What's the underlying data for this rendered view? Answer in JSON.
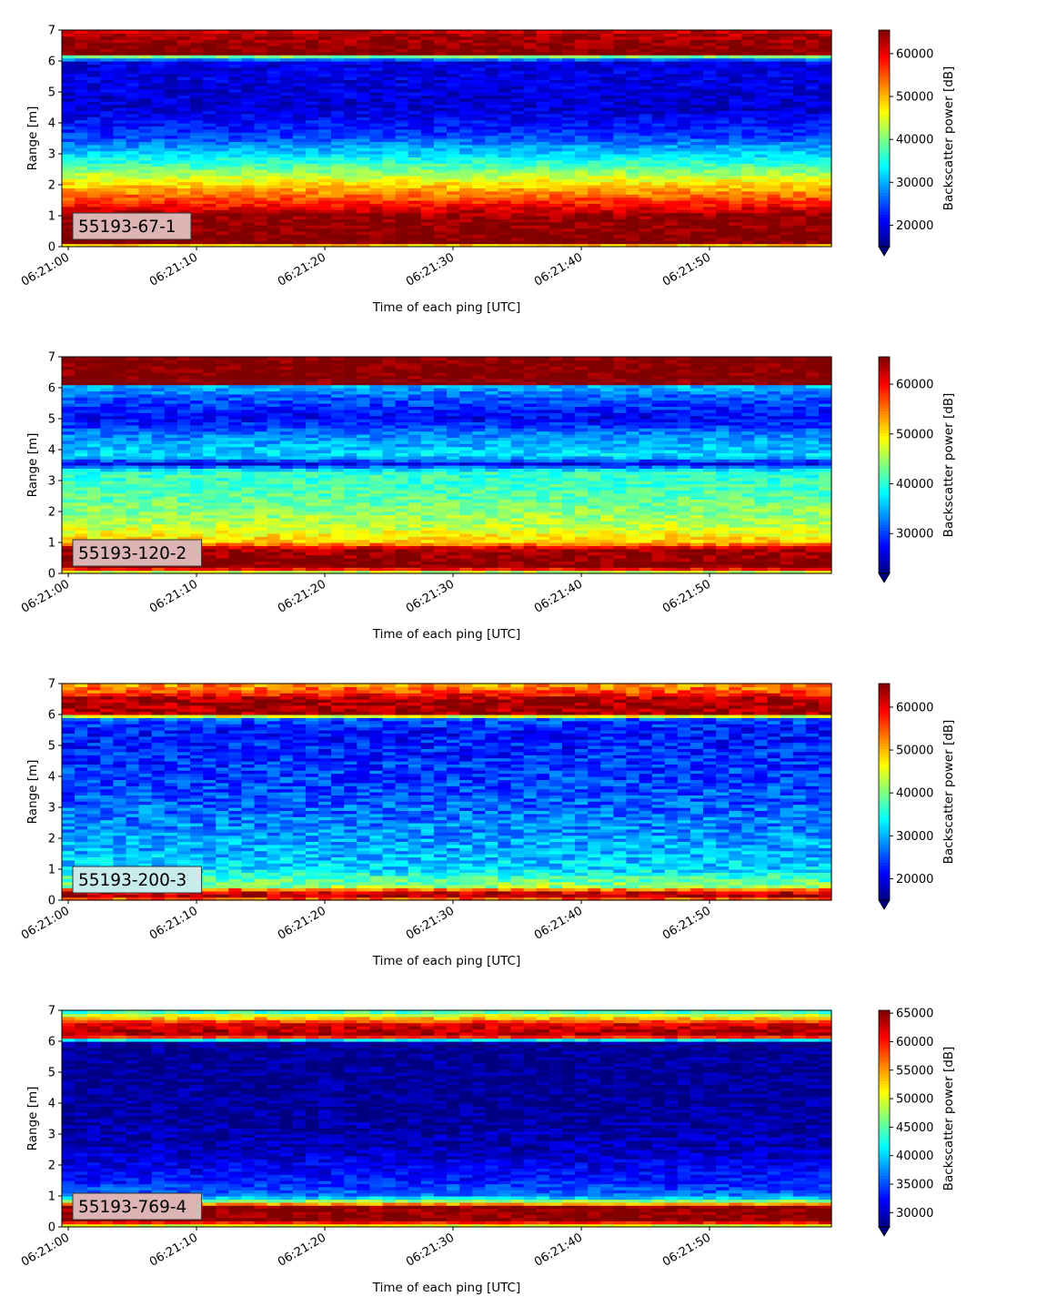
{
  "chart_data": [
    {
      "type": "heatmap",
      "label": "55193-67-1",
      "label_bg": "#dcb4b4",
      "xlabel": "Time of each ping [UTC]",
      "ylabel": "Range [m]",
      "xticks": [
        "06:21:00",
        "06:21:10",
        "06:21:20",
        "06:21:30",
        "06:21:40",
        "06:21:50"
      ],
      "xlim_seconds": [
        -0.5,
        59.5
      ],
      "yticks": [
        0,
        1,
        2,
        3,
        4,
        5,
        6,
        7
      ],
      "ylim": [
        0,
        7
      ],
      "colorbar_label": "Backscatter power [dB]",
      "colorbar_ticks": [
        20000,
        30000,
        40000,
        50000,
        60000
      ],
      "clim": [
        15000,
        65500
      ],
      "colormap": "jet",
      "colorbar_extend": "min",
      "profile": [
        {
          "range": 0.0,
          "value": 40000
        },
        {
          "range": 0.15,
          "value": 66000
        },
        {
          "range": 1.0,
          "value": 64500
        },
        {
          "range": 1.4,
          "value": 58000
        },
        {
          "range": 1.7,
          "value": 53000
        },
        {
          "range": 2.1,
          "value": 47000
        },
        {
          "range": 2.6,
          "value": 38000
        },
        {
          "range": 3.1,
          "value": 31000
        },
        {
          "range": 3.6,
          "value": 24000
        },
        {
          "range": 4.5,
          "value": 19000
        },
        {
          "range": 5.5,
          "value": 20000
        },
        {
          "range": 6.0,
          "value": 20000
        },
        {
          "range": 6.15,
          "value": 40000
        },
        {
          "range": 6.25,
          "value": 66000
        },
        {
          "range": 6.9,
          "value": 63000
        },
        {
          "range": 7.0,
          "value": 60000
        }
      ],
      "noise": 3000
    },
    {
      "type": "heatmap",
      "label": "55193-120-2",
      "label_bg": "#dcb4b4",
      "xlabel": "Time of each ping [UTC]",
      "ylabel": "Range [m]",
      "xticks": [
        "06:21:00",
        "06:21:10",
        "06:21:20",
        "06:21:30",
        "06:21:40",
        "06:21:50"
      ],
      "xlim_seconds": [
        -0.5,
        59.5
      ],
      "yticks": [
        0,
        1,
        2,
        3,
        4,
        5,
        6,
        7
      ],
      "ylim": [
        0,
        7
      ],
      "colorbar_label": "Backscatter power [dB]",
      "colorbar_ticks": [
        30000,
        40000,
        50000,
        60000
      ],
      "clim": [
        22000,
        65500
      ],
      "colormap": "jet",
      "colorbar_extend": "min",
      "profile": [
        {
          "range": 0.0,
          "value": 40000
        },
        {
          "range": 0.2,
          "value": 66000
        },
        {
          "range": 0.8,
          "value": 64000
        },
        {
          "range": 1.0,
          "value": 52000
        },
        {
          "range": 1.6,
          "value": 46000
        },
        {
          "range": 2.5,
          "value": 42000
        },
        {
          "range": 3.3,
          "value": 40000
        },
        {
          "range": 3.55,
          "value": 27000
        },
        {
          "range": 3.8,
          "value": 37000
        },
        {
          "range": 4.5,
          "value": 33000
        },
        {
          "range": 5.0,
          "value": 27000
        },
        {
          "range": 5.8,
          "value": 32000
        },
        {
          "range": 6.1,
          "value": 36000
        },
        {
          "range": 6.15,
          "value": 66000
        },
        {
          "range": 7.0,
          "value": 66000
        }
      ],
      "noise": 3000
    },
    {
      "type": "heatmap",
      "label": "55193-200-3",
      "label_bg": "#c8ecec",
      "xlabel": "Time of each ping [UTC]",
      "ylabel": "Range [m]",
      "xticks": [
        "06:21:00",
        "06:21:10",
        "06:21:20",
        "06:21:30",
        "06:21:40",
        "06:21:50"
      ],
      "xlim_seconds": [
        -0.5,
        59.5
      ],
      "yticks": [
        0,
        1,
        2,
        3,
        4,
        5,
        6,
        7
      ],
      "ylim": [
        0,
        7
      ],
      "colorbar_label": "Backscatter power [dB]",
      "colorbar_ticks": [
        20000,
        30000,
        40000,
        50000,
        60000
      ],
      "clim": [
        15000,
        65500
      ],
      "colormap": "jet",
      "colorbar_extend": "min",
      "profile": [
        {
          "range": 0.0,
          "value": 45000
        },
        {
          "range": 0.1,
          "value": 64000
        },
        {
          "range": 0.3,
          "value": 60000
        },
        {
          "range": 0.45,
          "value": 42000
        },
        {
          "range": 1.0,
          "value": 32000
        },
        {
          "range": 2.0,
          "value": 29000
        },
        {
          "range": 3.5,
          "value": 25000
        },
        {
          "range": 5.5,
          "value": 22000
        },
        {
          "range": 5.9,
          "value": 26000
        },
        {
          "range": 6.0,
          "value": 64000
        },
        {
          "range": 6.5,
          "value": 64000
        },
        {
          "range": 6.75,
          "value": 55000
        },
        {
          "range": 7.0,
          "value": 52000
        }
      ],
      "noise": 4500
    },
    {
      "type": "heatmap",
      "label": "55193-769-4",
      "label_bg": "#dcb4b4",
      "xlabel": "Time of each ping [UTC]",
      "ylabel": "Range [m]",
      "xticks": [
        "06:21:00",
        "06:21:10",
        "06:21:20",
        "06:21:30",
        "06:21:40",
        "06:21:50"
      ],
      "xlim_seconds": [
        -0.5,
        59.5
      ],
      "yticks": [
        0,
        1,
        2,
        3,
        4,
        5,
        6,
        7
      ],
      "ylim": [
        0,
        7
      ],
      "colorbar_label": "Backscatter power [dB]",
      "colorbar_ticks": [
        30000,
        35000,
        40000,
        45000,
        50000,
        55000,
        60000,
        65000
      ],
      "clim": [
        27500,
        65500
      ],
      "colormap": "jet",
      "colorbar_extend": "min",
      "profile": [
        {
          "range": 0.0,
          "value": 45000
        },
        {
          "range": 0.2,
          "value": 65500
        },
        {
          "range": 0.65,
          "value": 65000
        },
        {
          "range": 0.8,
          "value": 50000
        },
        {
          "range": 1.0,
          "value": 37000
        },
        {
          "range": 1.5,
          "value": 33000
        },
        {
          "range": 2.5,
          "value": 30000
        },
        {
          "range": 3.5,
          "value": 28500
        },
        {
          "range": 6.0,
          "value": 28000
        },
        {
          "range": 6.1,
          "value": 55000
        },
        {
          "range": 6.2,
          "value": 64000
        },
        {
          "range": 6.55,
          "value": 62000
        },
        {
          "range": 6.7,
          "value": 56000
        },
        {
          "range": 6.9,
          "value": 48000
        },
        {
          "range": 7.0,
          "value": 40000
        }
      ],
      "noise": 2500
    }
  ]
}
